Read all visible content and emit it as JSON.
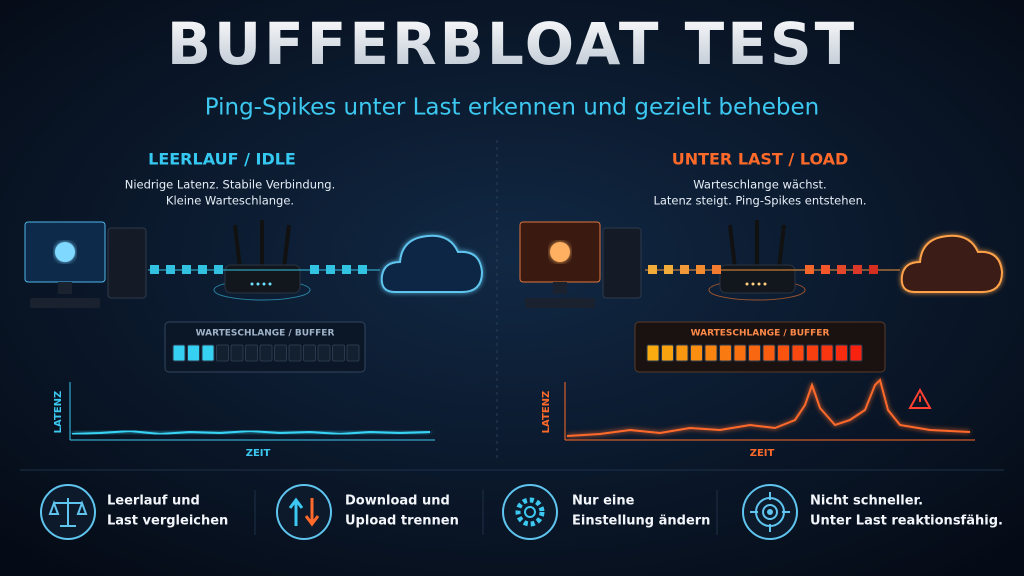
{
  "header": {
    "title": "BUFFERBLOAT TEST",
    "subtitle": "Ping-Spikes unter Last erkennen und gezielt beheben"
  },
  "panels": [
    {
      "heading": "LEERLAUF / IDLE",
      "description": [
        "Niedrige Latenz. Stabile Verbindung.",
        "Kleine Warteschlange."
      ],
      "buffer_label": "WARTESCHLANGE / BUFFER",
      "y_label": "LATENZ",
      "x_label": "ZEIT"
    },
    {
      "heading": "UNTER LAST / LOAD",
      "description": [
        "Warteschlange wächst.",
        "Latenz steigt. Ping-Spikes entstehen."
      ],
      "buffer_label": "WARTESCHLANGE / BUFFER",
      "y_label": "LATENZ",
      "x_label": "ZEIT"
    }
  ],
  "tips": [
    {
      "lines": [
        "Leerlauf und",
        "Last vergleichen"
      ]
    },
    {
      "lines": [
        "Download und",
        "Upload trennen"
      ]
    },
    {
      "lines": [
        "Nur eine",
        "Einstellung ändern"
      ]
    },
    {
      "lines": [
        "Nicht schneller.",
        "Unter Last reaktionsfähig."
      ]
    }
  ]
}
